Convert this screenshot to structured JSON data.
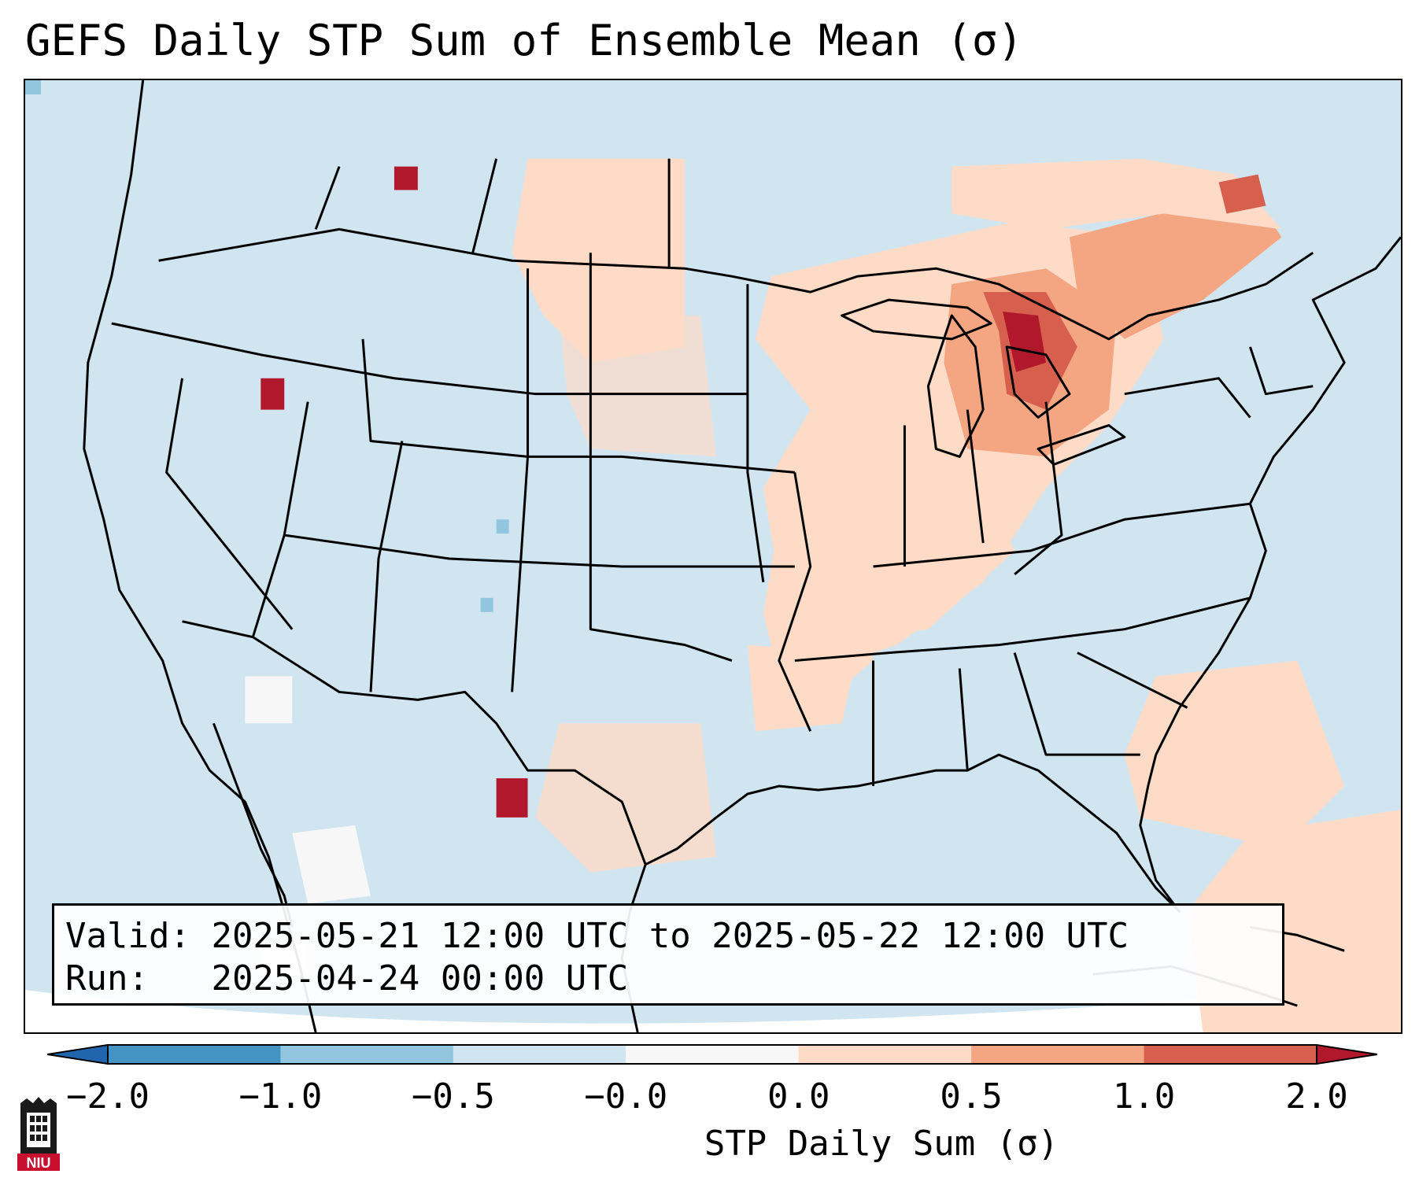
{
  "title": "GEFS Daily STP Sum of Ensemble Mean (σ)",
  "info": {
    "valid_label": "Valid:",
    "valid_value": "2025-05-21 12:00 UTC to 2025-05-22 12:00 UTC",
    "run_label": "Run:",
    "run_value": "2025-04-24 00:00 UTC"
  },
  "colorbar": {
    "label": "STP Daily Sum (σ)",
    "ticks": [
      "−2.0",
      "−1.0",
      "−0.5",
      "−0.0",
      "0.0",
      "0.5",
      "1.0",
      "2.0"
    ],
    "colors": [
      "#2166ac",
      "#4393c3",
      "#92c5de",
      "#d1e5f0",
      "#f7f7f7",
      "#fddbc7",
      "#f4a582",
      "#d6604d",
      "#b2182b"
    ]
  },
  "map": {
    "background_color": "#d1e5f0",
    "line_color": "#000000"
  },
  "logo": {
    "text": "NIU"
  }
}
